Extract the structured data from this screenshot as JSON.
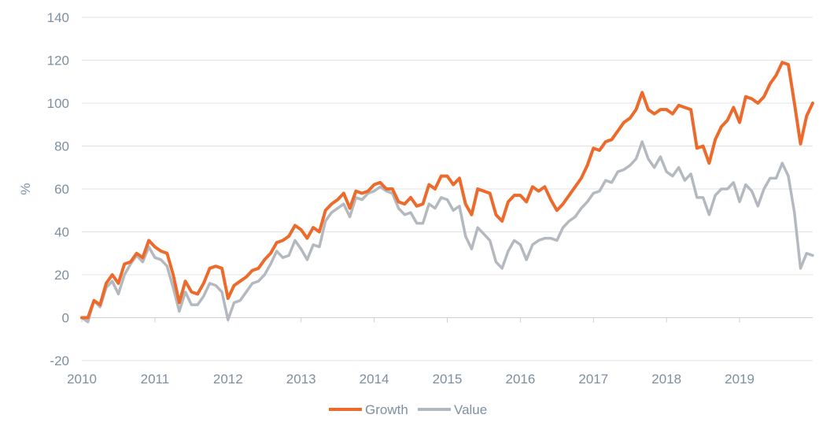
{
  "chart_data": {
    "type": "line",
    "title": "",
    "xlabel": "",
    "ylabel": "%",
    "ylim": [
      -20,
      140
    ],
    "yticks": [
      -20,
      0,
      20,
      40,
      60,
      80,
      100,
      120,
      140
    ],
    "xlim": [
      2010,
      2020
    ],
    "xticks": [
      2010,
      2011,
      2012,
      2013,
      2014,
      2015,
      2016,
      2017,
      2018,
      2019
    ],
    "grid": "horizontal",
    "legend": "bottom-center",
    "colors": {
      "Growth": "#ec6a2b",
      "Value": "#b3b9bf"
    },
    "x_start": 2010,
    "x_step_months": 1,
    "series": [
      {
        "name": "Growth",
        "values": [
          0,
          0,
          8,
          6,
          16,
          20,
          16,
          25,
          26,
          30,
          28,
          36,
          33,
          31,
          30,
          20,
          7,
          17,
          12,
          11,
          16,
          23,
          24,
          23,
          9,
          15,
          17,
          19,
          22,
          23,
          27,
          30,
          35,
          36,
          38,
          43,
          41,
          37,
          42,
          40,
          50,
          53,
          55,
          58,
          51,
          59,
          58,
          59,
          62,
          63,
          60,
          60,
          54,
          53,
          56,
          52,
          53,
          62,
          60,
          66,
          66,
          62,
          65,
          53,
          48,
          60,
          59,
          58,
          48,
          45,
          54,
          57,
          57,
          54,
          61,
          59,
          61,
          55,
          50,
          53,
          57,
          61,
          65,
          71,
          79,
          78,
          82,
          83,
          87,
          91,
          93,
          97,
          105,
          97,
          95,
          97,
          97,
          95,
          99,
          98,
          97,
          79,
          80,
          72,
          83,
          89,
          92,
          98,
          91,
          103,
          102,
          100,
          103,
          109,
          113,
          119,
          118,
          100,
          81,
          94,
          100
        ]
      },
      {
        "name": "Value",
        "values": [
          0,
          -2,
          8,
          5,
          14,
          17,
          11,
          20,
          25,
          29,
          26,
          33,
          28,
          27,
          24,
          14,
          3,
          12,
          6,
          6,
          10,
          16,
          15,
          12,
          -1,
          7,
          8,
          12,
          16,
          17,
          20,
          25,
          31,
          28,
          29,
          36,
          32,
          27,
          34,
          33,
          45,
          49,
          51,
          53,
          47,
          56,
          55,
          58,
          59,
          61,
          59,
          58,
          51,
          48,
          49,
          44,
          44,
          53,
          51,
          56,
          55,
          50,
          52,
          38,
          32,
          42,
          39,
          36,
          26,
          23,
          31,
          36,
          34,
          27,
          34,
          36,
          37,
          37,
          36,
          42,
          45,
          47,
          51,
          54,
          58,
          59,
          64,
          63,
          68,
          69,
          71,
          74,
          82,
          74,
          70,
          75,
          68,
          66,
          70,
          64,
          67,
          56,
          56,
          48,
          57,
          60,
          60,
          63,
          54,
          62,
          59,
          52,
          60,
          65,
          65,
          72,
          66,
          49,
          23,
          30,
          29
        ]
      }
    ]
  }
}
